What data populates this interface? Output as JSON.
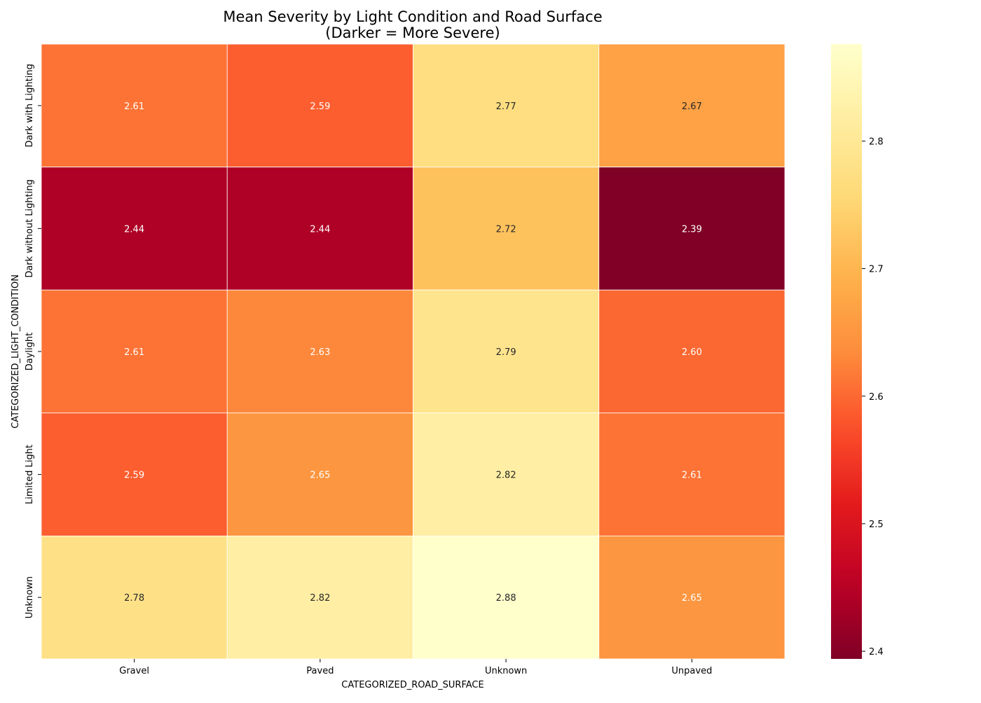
{
  "chart_data": {
    "type": "heatmap",
    "title_line1": "Mean Severity by Light Condition and Road Surface",
    "title_line2": "(Darker = More Severe)",
    "xlabel": "CATEGORIZED_ROAD_SURFACE",
    "ylabel": "CATEGORIZED_LIGHT_CONDITION",
    "x_categories": [
      "Gravel",
      "Paved",
      "Unknown",
      "Unpaved"
    ],
    "y_categories": [
      "Dark with Lighting",
      "Dark without Lighting",
      "Daylight",
      "Limited Light",
      "Unknown"
    ],
    "values": [
      [
        2.61,
        2.59,
        2.77,
        2.67
      ],
      [
        2.44,
        2.44,
        2.72,
        2.39
      ],
      [
        2.61,
        2.63,
        2.79,
        2.6
      ],
      [
        2.59,
        2.65,
        2.82,
        2.61
      ],
      [
        2.78,
        2.82,
        2.88,
        2.65
      ]
    ],
    "value_labels": [
      [
        "2.61",
        "2.59",
        "2.77",
        "2.67"
      ],
      [
        "2.44",
        "2.44",
        "2.72",
        "2.39"
      ],
      [
        "2.61",
        "2.63",
        "2.79",
        "2.60"
      ],
      [
        "2.59",
        "2.65",
        "2.82",
        "2.61"
      ],
      [
        "2.78",
        "2.82",
        "2.88",
        "2.65"
      ]
    ],
    "colormap": "YlOrRd_r",
    "colorbar_range": [
      2.394,
      2.876
    ],
    "colorbar_ticks": [
      2.4,
      2.5,
      2.6,
      2.7,
      2.8
    ],
    "colorbar_tick_labels": [
      "2.4",
      "2.5",
      "2.6",
      "2.7",
      "2.8"
    ],
    "grid": false,
    "legend": "colorbar-right"
  }
}
